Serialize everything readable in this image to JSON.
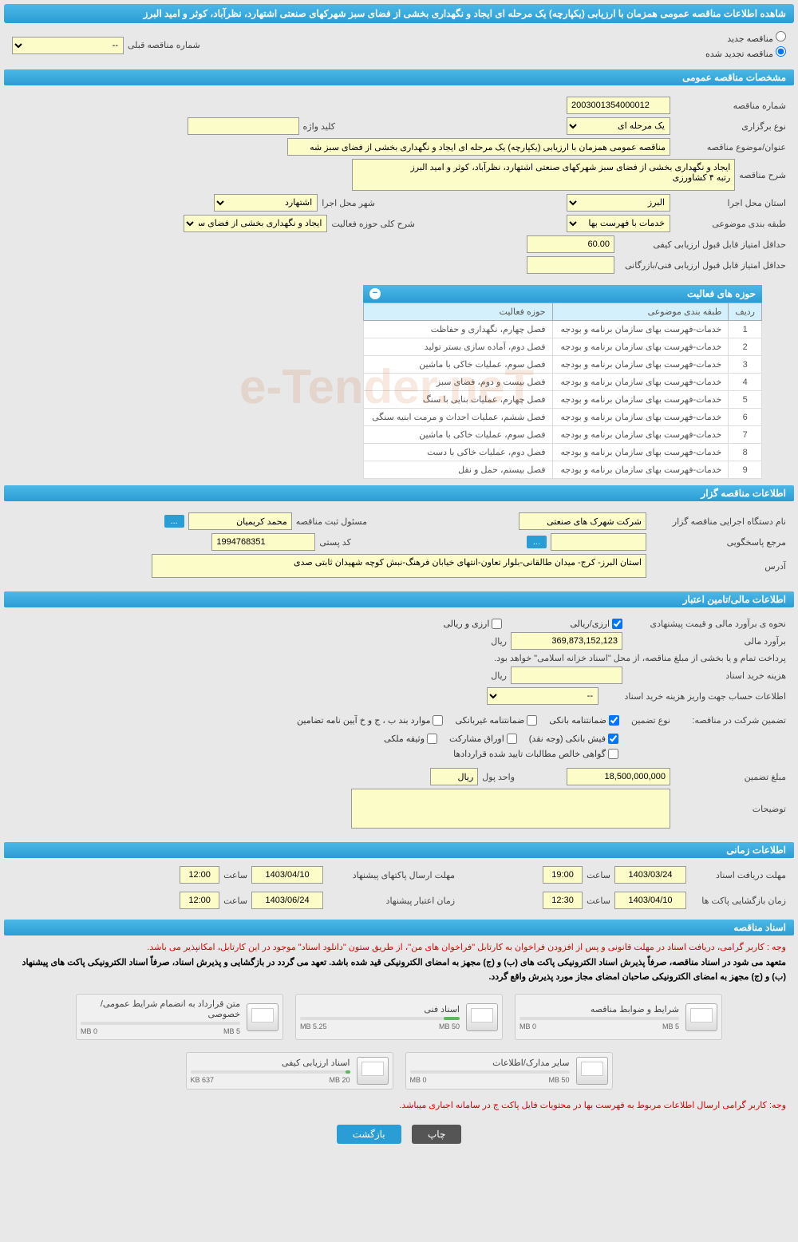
{
  "header_title": "شاهده اطلاعات مناقصه عمومی همزمان با ارزیابی (یکپارچه) یک مرحله ای ایجاد و نگهداری بخشی از فضای سبز شهرکهای صنعتی اشتهارد، نظرآباد، کوثر و امید البرز",
  "radio_new": "مناقصه جدید",
  "radio_renewed": "مناقصه تجدید شده",
  "prev_tender_label": "شماره مناقصه قبلی",
  "prev_tender_value": "--",
  "section_general": "مشخصات مناقصه عمومی",
  "tender_no_label": "شماره مناقصه",
  "tender_no": "2003001354000012",
  "hold_type_label": "نوع برگزاری",
  "hold_type": "یک مرحله ای",
  "keyword_label": "کلید واژه",
  "keyword": "",
  "title_label": "عنوان/موضوع مناقصه",
  "title_value": "مناقصه عمومی همزمان با ارزیابی (یکپارچه) یک مرحله ای ایجاد و نگهداری بخشی از فضای سبز شه",
  "desc_label": "شرح مناقصه",
  "desc_value": "ایجاد و نگهداری بخشی از فضای سبز شهرکهای صنعتی اشتهارد، نظرآباد، کوثر و امید البرز\nرتبه ۴ کشاورزی",
  "province_label": "استان محل اجرا",
  "province": "البرز",
  "city_label": "شهر محل اجرا",
  "city": "اشتهارد",
  "category_label": "طبقه بندی موضوعی",
  "category": "خدمات با فهرست بها",
  "activity_scope_label": "شرح کلی حوزه فعالیت",
  "activity_scope": "ایجاد و نگهداری بخشی از فضای سبز شهرکهای",
  "min_quality_label": "حداقل امتیاز قابل قبول ارزیابی کیفی",
  "min_quality": "60.00",
  "min_tech_label": "حداقل امتیاز قابل قبول ارزیابی فنی/بازرگانی",
  "min_tech": "",
  "activity_table_title": "حوزه های فعالیت",
  "col_row": "ردیف",
  "col_cat": "طبقه بندی موضوعی",
  "col_act": "حوزه فعالیت",
  "activities": [
    {
      "n": "1",
      "cat": "خدمات-فهرست بهای سازمان برنامه و بودجه",
      "act": "فصل چهارم، نگهداری و حفاظت"
    },
    {
      "n": "2",
      "cat": "خدمات-فهرست بهای سازمان برنامه و بودجه",
      "act": "فصل دوم، آماده سازی بستر تولید"
    },
    {
      "n": "3",
      "cat": "خدمات-فهرست بهای سازمان برنامه و بودجه",
      "act": "فصل سوم، عملیات خاکی با ماشین"
    },
    {
      "n": "4",
      "cat": "خدمات-فهرست بهای سازمان برنامه و بودجه",
      "act": "فصل بیست و دوم، فضای سبز"
    },
    {
      "n": "5",
      "cat": "خدمات-فهرست بهای سازمان برنامه و بودجه",
      "act": "فصل چهارم، عملیات بنایی با سنگ"
    },
    {
      "n": "6",
      "cat": "خدمات-فهرست بهای سازمان برنامه و بودجه",
      "act": "فصل ششم، عملیات احداث و مرمت ابنیه سنگی"
    },
    {
      "n": "7",
      "cat": "خدمات-فهرست بهای سازمان برنامه و بودجه",
      "act": "فصل سوم، عملیات خاکی با ماشین"
    },
    {
      "n": "8",
      "cat": "خدمات-فهرست بهای سازمان برنامه و بودجه",
      "act": "فصل دوم، عملیات خاکی با دست"
    },
    {
      "n": "9",
      "cat": "خدمات-فهرست بهای سازمان برنامه و بودجه",
      "act": "فصل بیستم، حمل و نقل"
    }
  ],
  "section_organizer": "اطلاعات مناقصه گزار",
  "org_name_label": "نام دستگاه اجرایی مناقصه گزار",
  "org_name": "شرکت شهرک های صنعتی",
  "reg_officer_label": "مسئول ثبت مناقصه",
  "reg_officer": "محمد کریمیان",
  "response_label": "مرجع پاسخگویی",
  "response": "",
  "postal_label": "کد پستی",
  "postal": "1994768351",
  "address_label": "آدرس",
  "address": "استان البرز- کرج- میدان طالقانی-بلوار تعاون-انتهای خیابان فرهنگ-نبش کوچه شهیدان ثابتی صدی",
  "section_financial": "اطلاعات مالی/تامین اعتبار",
  "estimate_method_label": "نحوه ی برآورد مالی و قیمت پیشنهادی",
  "cb_rial_currency": "ارزی/ریالی",
  "cb_currency_rial": "ارزی و ریالی",
  "estimate_label": "برآورد مالی",
  "estimate_value": "369,873,152,123",
  "currency_rial": "ریال",
  "payment_note": "پرداخت تمام و یا بخشی از مبلغ مناقصه، از محل \"اسناد خزانه اسلامی\" خواهد بود.",
  "doc_cost_label": "هزینه خرید اسناد",
  "doc_cost": "",
  "deposit_info_label": "اطلاعات حساب جهت واریز هزینه خرید اسناد",
  "deposit_info": "--",
  "guarantee_label": "تضمین شرکت در مناقصه:",
  "guarantee_type_label": "نوع تضمین",
  "cb_bank_guarantee": "ضمانتنامه بانکی",
  "cb_nonbank_guarantee": "ضمانتنامه غیربانکی",
  "cb_bylaw": "موارد بند ب ، ج و خ آیین نامه تضامین",
  "cb_bank_receipt": "فیش بانکی (وجه نقد)",
  "cb_securities": "اوراق مشارکت",
  "cb_property": "وثیقه ملکی",
  "cb_net_claims": "گواهی خالص مطالبات تایید شده قراردادها",
  "guarantee_amount_label": "مبلغ تضمین",
  "guarantee_amount": "18,500,000,000",
  "currency_unit_label": "واحد پول",
  "currency_unit": "ریال",
  "notes_label": "توضیحات",
  "notes_value": "",
  "section_timing": "اطلاعات زمانی",
  "receive_deadline_label": "مهلت دریافت اسناد",
  "receive_date": "1403/03/24",
  "receive_time_label": "ساعت",
  "receive_time": "19:00",
  "send_deadline_label": "مهلت ارسال پاکتهای پیشنهاد",
  "send_date": "1403/04/10",
  "send_time": "12:00",
  "open_time_label": "زمان بازگشایی پاکت ها",
  "open_date": "1403/04/10",
  "open_time": "12:30",
  "validity_label": "زمان اعتبار پیشنهاد",
  "validity_date": "1403/06/24",
  "validity_time": "12:00",
  "section_docs": "اسناد مناقصه",
  "notice1": "وجه : کاربر گرامی، دریافت اسناد در مهلت قانونی و پس از افزودن فراخوان به کارتابل \"فراخوان های من\"، از طریق ستون \"دانلود اسناد\" موجود در این کارتابل، امکانپذیر می باشد.",
  "notice2": "متعهد می شود در اسناد مناقصه، صرفاً پذیرش اسناد الکترونیکی پاکت های (ب) و (ج) مجهز به امضای الکترونیکی قید شده باشد. تعهد می گردد در بازگشایی و پذیرش اسناد، صرفاً اسناد الکترونیکی پاکت های پیشنهاد (ب) و (ج) مجهز به امضای الکترونیکی صاحبان امضای مجاز مورد پذیرش واقع گردد.",
  "files": [
    {
      "title": "شرایط و ضوابط مناقصه",
      "used": "0 MB",
      "total": "5 MB",
      "pct": 0
    },
    {
      "title": "اسناد فنی",
      "used": "5.25 MB",
      "total": "50 MB",
      "pct": 10
    },
    {
      "title": "متن قرارداد به انضمام شرایط عمومی/خصوصی",
      "used": "0 MB",
      "total": "5 MB",
      "pct": 0
    },
    {
      "title": "سایر مدارک/اطلاعات",
      "used": "0 MB",
      "total": "50 MB",
      "pct": 0
    },
    {
      "title": "اسناد ارزیابی کیفی",
      "used": "637 KB",
      "total": "20 MB",
      "pct": 3
    }
  ],
  "notice3": "وجه: کاربر گرامی ارسال اطلاعات مربوط به فهرست بها در محتویات فایل پاکت ج در سامانه اجباری میباشد.",
  "btn_print": "چاپ",
  "btn_back": "بازگشت",
  "watermark": "e-Tender.neT",
  "colors": {
    "header_bg": "#2a9dd4",
    "yellow_bg": "#fcfcc8",
    "page_bg": "#e8e8e8"
  }
}
